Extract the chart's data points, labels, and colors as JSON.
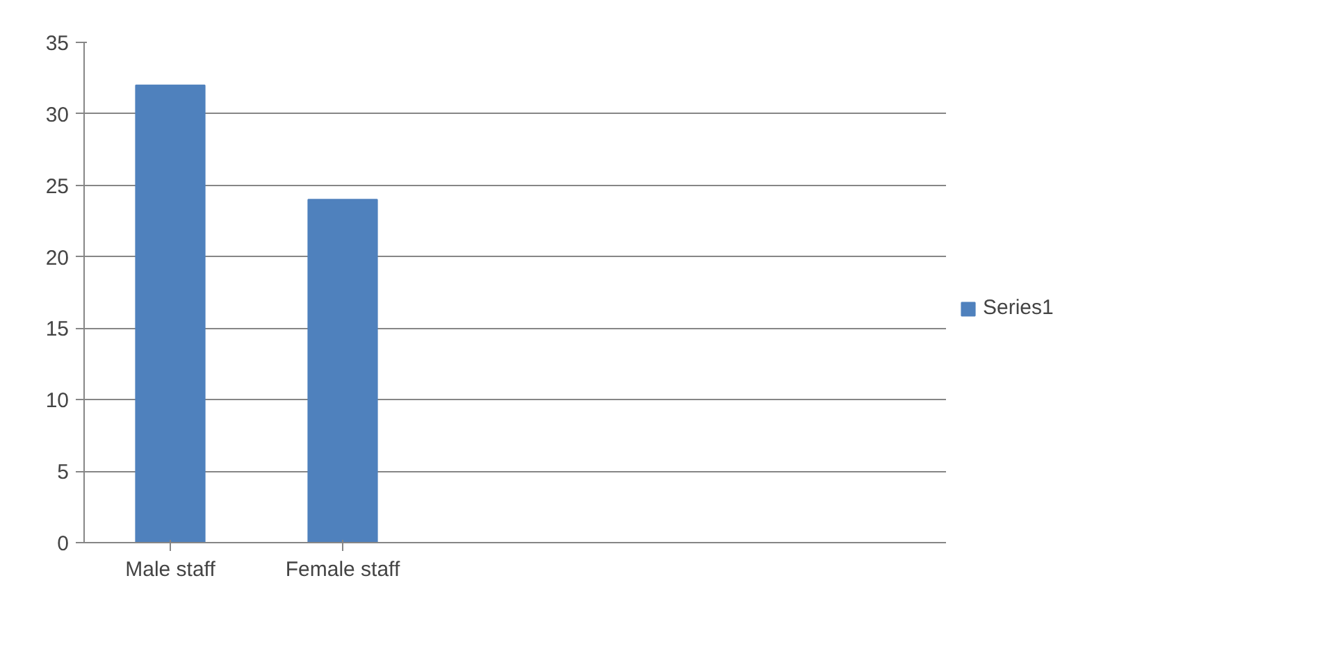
{
  "chart_data": {
    "type": "bar",
    "categories": [
      "Male staff",
      "Female staff",
      null,
      null,
      null
    ],
    "series": [
      {
        "name": "Series1",
        "color": "#4f81bd",
        "values": [
          32,
          24,
          null,
          null,
          null
        ]
      }
    ],
    "ylim": [
      0,
      35
    ],
    "yticks": [
      0,
      5,
      10,
      15,
      20,
      25,
      30,
      35
    ],
    "grid": "y",
    "legend": "right"
  }
}
